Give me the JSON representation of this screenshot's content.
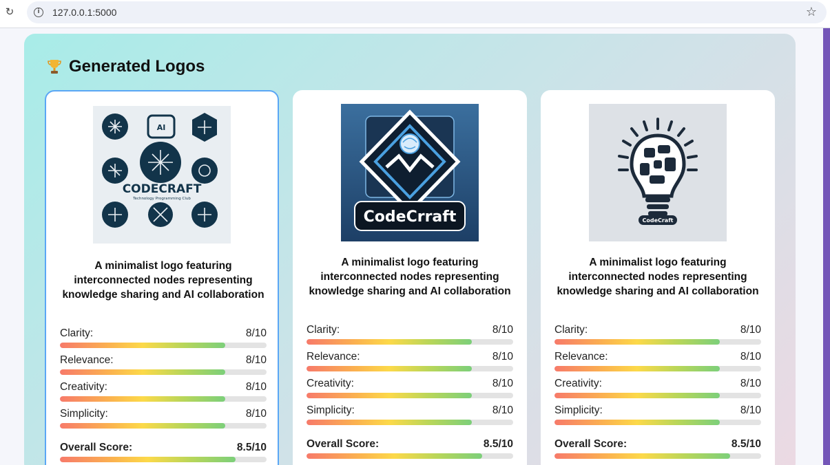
{
  "browser": {
    "url": "127.0.0.1:5000",
    "reload_icon": "reload-icon",
    "info_icon": "info-icon",
    "bookmark_icon": "star-icon"
  },
  "section": {
    "title": "Generated Logos",
    "icon": "trophy-icon"
  },
  "colors": {
    "accent_border": "#5aa6f5",
    "panel_gradient_start": "#a8ece8",
    "panel_gradient_end": "#ecd9e3",
    "scroll_accent": "#7456b8"
  },
  "cards": [
    {
      "selected": true,
      "image_alt": "CODECRAFT icon grid logo",
      "logo_text": "CODECRAFT",
      "logo_subtext": "Technology Programming Club",
      "title": "A minimalist logo featuring interconnected nodes representing knowledge sharing and AI collaboration",
      "metrics": [
        {
          "label": "Clarity:",
          "value": "8/10",
          "score": 0.8
        },
        {
          "label": "Relevance:",
          "value": "8/10",
          "score": 0.8
        },
        {
          "label": "Creativity:",
          "value": "8/10",
          "score": 0.8
        },
        {
          "label": "Simplicity:",
          "value": "8/10",
          "score": 0.8
        }
      ],
      "overall": {
        "label": "Overall Score:",
        "value": "8.5/10",
        "score": 0.85
      }
    },
    {
      "selected": false,
      "image_alt": "CodeCrraft diamond brain logo",
      "logo_text": "CodeCrraft",
      "title": "A minimalist logo featuring interconnected nodes representing knowledge sharing and AI collaboration",
      "metrics": [
        {
          "label": "Clarity:",
          "value": "8/10",
          "score": 0.8
        },
        {
          "label": "Relevance:",
          "value": "8/10",
          "score": 0.8
        },
        {
          "label": "Creativity:",
          "value": "8/10",
          "score": 0.8
        },
        {
          "label": "Simplicity:",
          "value": "8/10",
          "score": 0.8
        }
      ],
      "overall": {
        "label": "Overall Score:",
        "value": "8.5/10",
        "score": 0.85
      }
    },
    {
      "selected": false,
      "image_alt": "CodeCraft lightbulb puzzle logo",
      "logo_text": "CodeCraft",
      "title": "A minimalist logo featuring interconnected nodes representing knowledge sharing and AI collaboration",
      "metrics": [
        {
          "label": "Clarity:",
          "value": "8/10",
          "score": 0.8
        },
        {
          "label": "Relevance:",
          "value": "8/10",
          "score": 0.8
        },
        {
          "label": "Creativity:",
          "value": "8/10",
          "score": 0.8
        },
        {
          "label": "Simplicity:",
          "value": "8/10",
          "score": 0.8
        }
      ],
      "overall": {
        "label": "Overall Score:",
        "value": "8.5/10",
        "score": 0.85
      }
    }
  ]
}
